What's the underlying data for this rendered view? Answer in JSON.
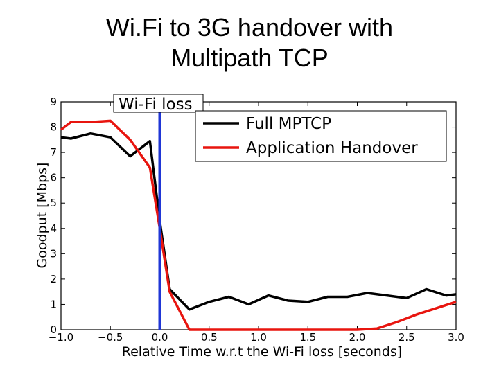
{
  "slide": {
    "title_line1": "Wi.Fi to 3G handover with",
    "title_line2": "Multipath TCP"
  },
  "chart_data": {
    "type": "line",
    "xlabel": "Relative Time w.r.t the Wi-Fi loss [seconds]",
    "ylabel": "Goodput [Mbps]",
    "xlim": [
      -1.0,
      3.0
    ],
    "ylim": [
      0,
      9
    ],
    "x_ticks": [
      -1.0,
      -0.5,
      0.0,
      0.5,
      1.0,
      1.5,
      2.0,
      2.5,
      3.0
    ],
    "x_tick_labels": [
      "−1.0",
      "−0.5",
      "0.0",
      "0.5",
      "1.0",
      "1.5",
      "2.0",
      "2.5",
      "3.0"
    ],
    "y_ticks": [
      0,
      1,
      2,
      3,
      4,
      5,
      6,
      7,
      8,
      9
    ],
    "y_tick_labels": [
      "0",
      "1",
      "2",
      "3",
      "4",
      "5",
      "6",
      "7",
      "8",
      "9"
    ],
    "grid": false,
    "legend_position": "top-right",
    "annotation": {
      "text": "Wi-Fi loss",
      "x": 0.0,
      "color": "#1f36d6"
    },
    "series": [
      {
        "name": "Full MPTCP",
        "color": "#000000",
        "points": [
          [
            -1.0,
            7.6
          ],
          [
            -0.9,
            7.55
          ],
          [
            -0.7,
            7.75
          ],
          [
            -0.5,
            7.6
          ],
          [
            -0.3,
            6.85
          ],
          [
            -0.1,
            7.45
          ],
          [
            0.0,
            4.3
          ],
          [
            0.1,
            1.6
          ],
          [
            0.3,
            0.8
          ],
          [
            0.5,
            1.1
          ],
          [
            0.7,
            1.3
          ],
          [
            0.9,
            1.0
          ],
          [
            1.1,
            1.35
          ],
          [
            1.3,
            1.15
          ],
          [
            1.5,
            1.1
          ],
          [
            1.7,
            1.3
          ],
          [
            1.9,
            1.3
          ],
          [
            2.1,
            1.45
          ],
          [
            2.3,
            1.35
          ],
          [
            2.5,
            1.25
          ],
          [
            2.7,
            1.6
          ],
          [
            2.9,
            1.35
          ],
          [
            3.0,
            1.4
          ]
        ]
      },
      {
        "name": "Application Handover",
        "color": "#e8150f",
        "points": [
          [
            -1.0,
            7.9
          ],
          [
            -0.9,
            8.2
          ],
          [
            -0.7,
            8.2
          ],
          [
            -0.5,
            8.25
          ],
          [
            -0.3,
            7.5
          ],
          [
            -0.1,
            6.4
          ],
          [
            0.0,
            4.0
          ],
          [
            0.1,
            1.5
          ],
          [
            0.3,
            0.0
          ],
          [
            0.5,
            0.0
          ],
          [
            1.0,
            0.0
          ],
          [
            1.5,
            0.0
          ],
          [
            2.0,
            0.0
          ],
          [
            2.2,
            0.05
          ],
          [
            2.4,
            0.3
          ],
          [
            2.6,
            0.6
          ],
          [
            2.8,
            0.85
          ],
          [
            3.0,
            1.1
          ]
        ]
      }
    ]
  }
}
